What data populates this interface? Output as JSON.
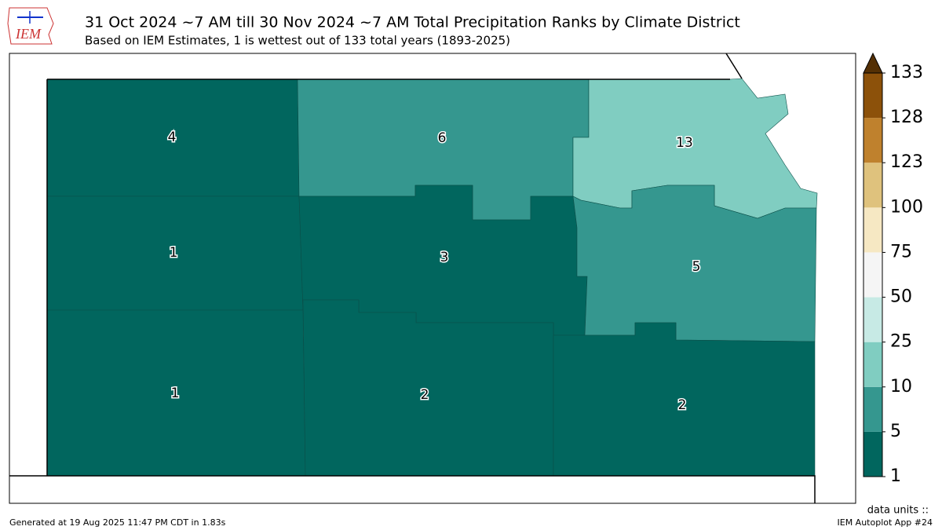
{
  "header": {
    "logo": "IEM",
    "title": "31 Oct 2024 ~7 AM till 30 Nov 2024 ~7 AM Total Precipitation Ranks by Climate District",
    "subtitle": "Based on IEM Estimates, 1 is wettest out of 133 total years (1893-2025)"
  },
  "map": {
    "districts": [
      4,
      6,
      13,
      1,
      3,
      5,
      1,
      2,
      2
    ]
  },
  "colorbar": {
    "ticks": [
      1,
      5,
      10,
      25,
      50,
      75,
      100,
      123,
      128,
      133
    ],
    "colors": [
      "#01665e",
      "#35978f",
      "#80cdc1",
      "#c7eae5",
      "#f5f5f5",
      "#f6e8c3",
      "#dfc27d",
      "#bf812d",
      "#8c510a"
    ],
    "extend_color": "#543005",
    "units_label": "data units ::"
  },
  "footer": {
    "generated": "Generated at 19 Aug 2025 11:47 PM CDT in 1.83s",
    "app": "IEM Autoplot App #24"
  }
}
